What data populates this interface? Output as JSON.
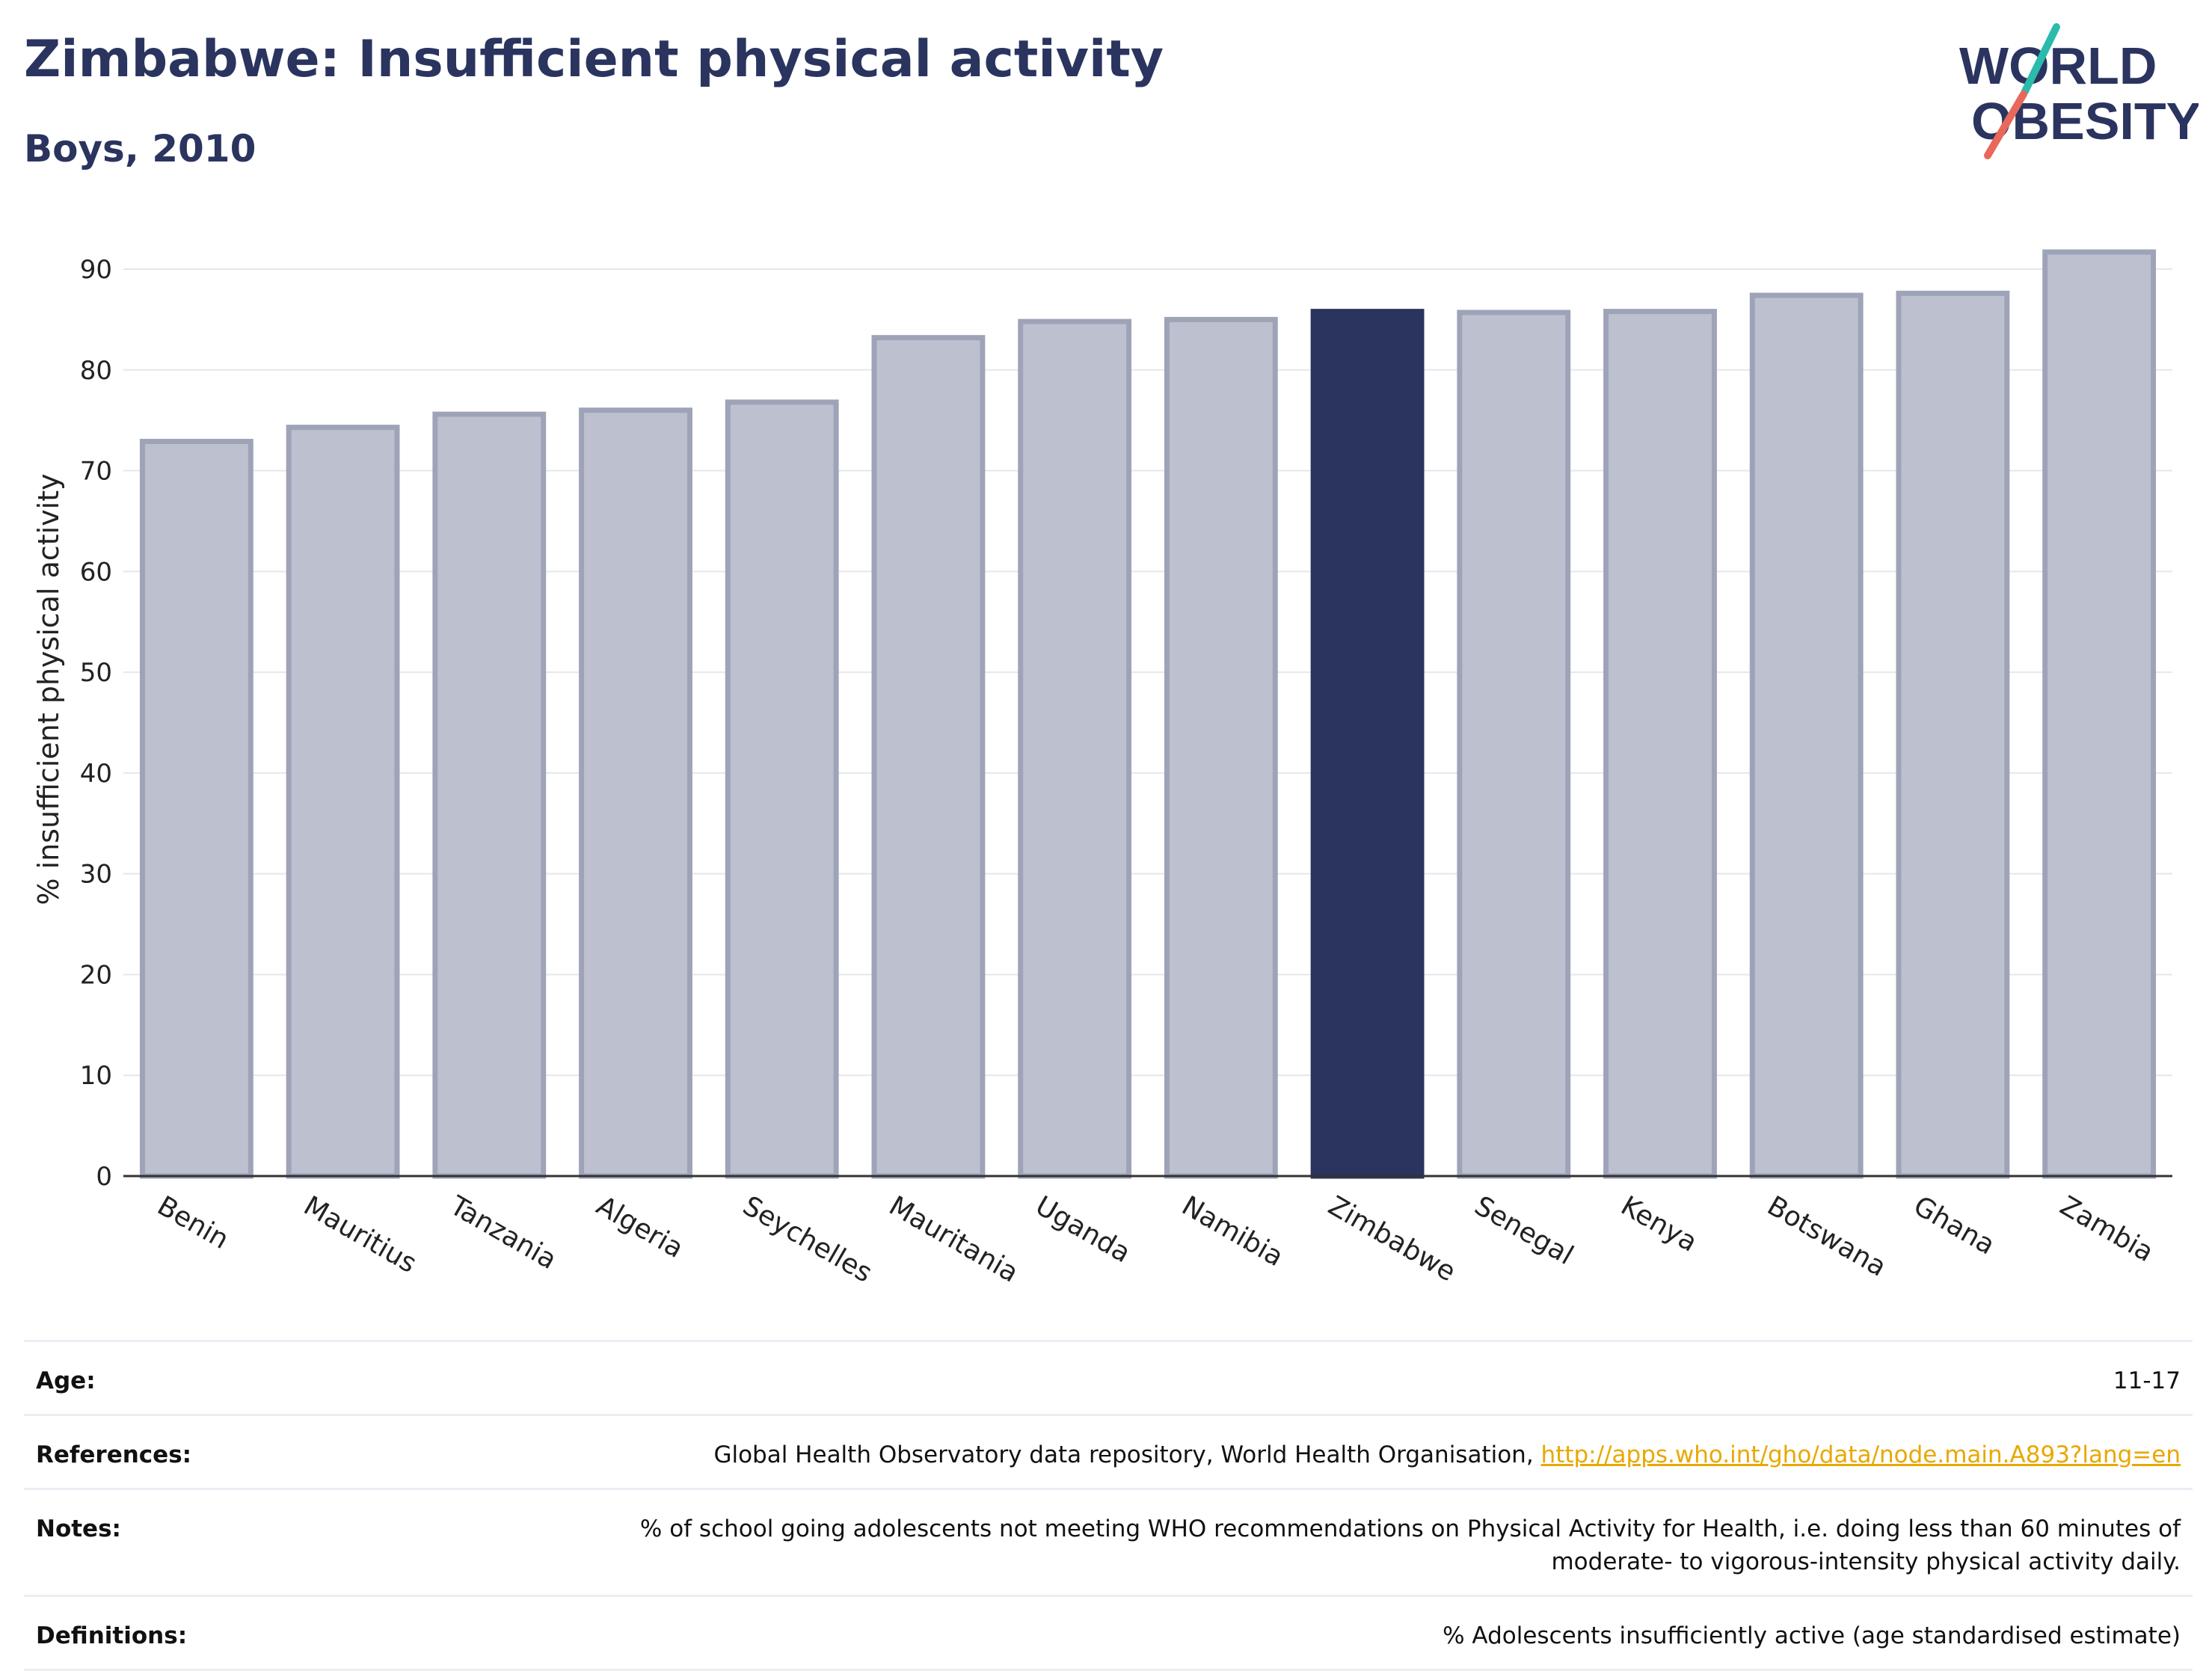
{
  "title": "Zimbabwe: Insufficient physical activity",
  "subtitle": "Boys, 2010",
  "logo": {
    "line1": "WORLD",
    "line2": "OBESITY"
  },
  "colors": {
    "highlight": "#2a345f",
    "bar": "#bdc1cf",
    "bar_border": "#9ea3b8",
    "accent_teal": "#2bbbad",
    "accent_red": "#e8685a",
    "link": "#e8a800"
  },
  "chart_data": {
    "type": "bar",
    "title": "Zimbabwe: Insufficient physical activity",
    "subtitle": "Boys, 2010",
    "xlabel": "",
    "ylabel": "% insufficient physical activity",
    "ylim": [
      0,
      92
    ],
    "yticks": [
      0,
      10,
      20,
      30,
      40,
      50,
      60,
      70,
      80,
      90
    ],
    "grid": true,
    "highlight": "Zimbabwe",
    "categories": [
      "Benin",
      "Mauritius",
      "Tanzania",
      "Algeria",
      "Seychelles",
      "Mauritania",
      "Uganda",
      "Namibia",
      "Zimbabwe",
      "Senegal",
      "Kenya",
      "Botswana",
      "Ghana",
      "Zambia"
    ],
    "values": [
      72.9,
      74.3,
      75.6,
      76.0,
      76.8,
      83.2,
      84.8,
      85.0,
      85.8,
      85.7,
      85.8,
      87.4,
      87.6,
      91.7
    ]
  },
  "info": {
    "age_label": "Age:",
    "age_value": "11-17",
    "references_label": "References:",
    "references_text": "Global Health Observatory data repository, World Health Organisation, ",
    "references_link": "http://apps.who.int/gho/data/node.main.A893?lang=en",
    "notes_label": "Notes:",
    "notes_line1": "% of school going adolescents not meeting WHO recommendations on Physical Activity for Health, i.e. doing less than 60 minutes of",
    "notes_line2": "moderate- to vigorous-intensity physical activity daily.",
    "definitions_label": "Definitions:",
    "definitions_value": "% Adolescents insufficiently active (age standardised estimate)"
  }
}
